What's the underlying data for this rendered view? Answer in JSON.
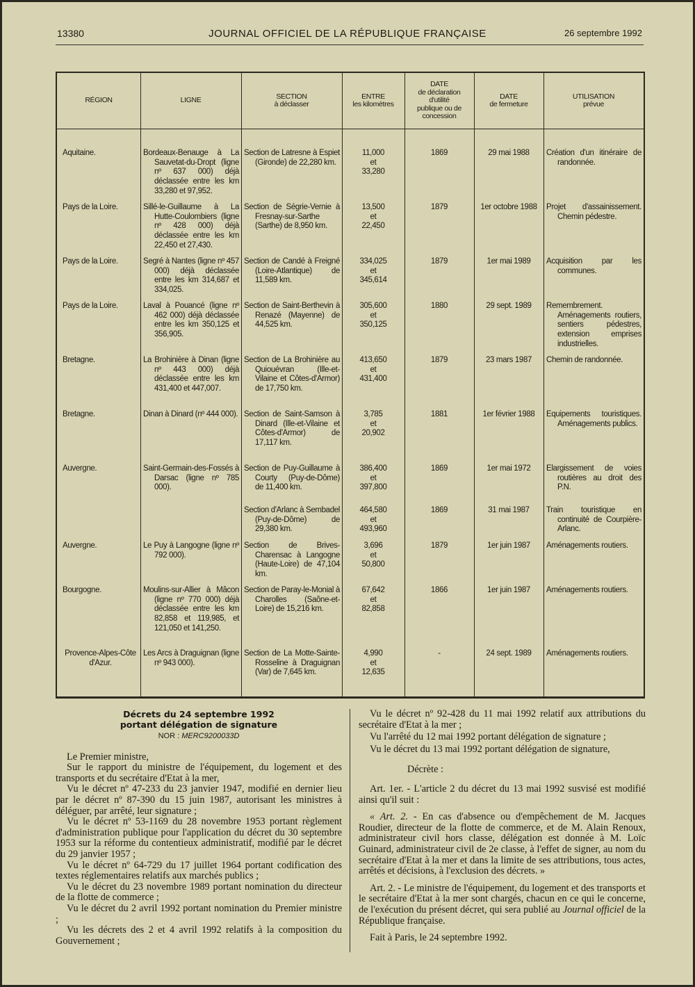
{
  "header": {
    "page_number": "13380",
    "journal_title": "JOURNAL OFFICIEL DE LA RÉPUBLIQUE FRANÇAISE",
    "date": "26 septembre 1992"
  },
  "table": {
    "columns": [
      "RÉGION",
      "LIGNE",
      "SECTION\nà déclasser",
      "ENTRE\nles kilomètres",
      "DATE\nde déclaration\nd'utilité\npublique ou de\nconcession",
      "DATE\nde fermeture",
      "UTILISATION\nprévue"
    ],
    "rows": [
      {
        "region": "Aquitaine.",
        "ligne": "Bordeaux-Benauge à La Sauvetat-du-Dropt (ligne nº 637 000) déjà déclassée entre les km 33,280 et 97,952.",
        "section": "Section de Latresne à Espiet (Gironde) de 22,280 km.",
        "km": "11,000\net\n33,280",
        "dup": "1869",
        "fermeture": "29 mai 1988",
        "utilisation": "Création d'un itinéraire de randonnée."
      },
      {
        "region": "Pays de la Loire.",
        "ligne": "Sillé-le-Guillaume à La Hutte-Coulombiers (ligne nº 428 000) déjà déclassée entre les km 22,450 et 27,430.",
        "section": "Section de Ségrie-Vernie à Fresnay-sur-Sarthe (Sarthe) de 8,950 km.",
        "km": "13,500\net\n22,450",
        "dup": "1879",
        "fermeture": "1er octobre 1988",
        "utilisation": "Projet d'assainissement. Chemin pédestre."
      },
      {
        "region": "Pays de la Loire.",
        "ligne": "Segré à Nantes (ligne nº 457 000) déjà déclassée entre les km 314,687 et 334,025.",
        "section": "Section de Candé à Freigné (Loire-Atlantique) de 11,589 km.",
        "km": "334,025\net\n345,614",
        "dup": "1879",
        "fermeture": "1er mai 1989",
        "utilisation": "Acquisition par les communes."
      },
      {
        "region": "Pays de la Loire.",
        "ligne": "Laval à Pouancé (ligne nº 462 000) déjà déclassée entre les km 350,125 et 356,905.",
        "section": "Section de Saint-Berthevin à Renazé (Mayenne) de 44,525 km.",
        "km": "305,600\net\n350,125",
        "dup": "1880",
        "fermeture": "29 sept. 1989",
        "utilisation": "Remembrement. Aménagements routiers, sentiers pédestres, extension emprises industrielles."
      },
      {
        "region": "Bretagne.",
        "ligne": "La Brohinière à Dinan (ligne nº 443 000) déjà déclassée entre les km 431,400 et 447,007.",
        "section": "Section de La Brohinière au Quiouévran (Ille-et-Vilaine et Côtes-d'Armor) de 17,750 km.",
        "km": "413,650\net\n431,400",
        "dup": "1879",
        "fermeture": "23 mars 1987",
        "utilisation": "Chemin de randonnée."
      },
      {
        "region": "Bretagne.",
        "ligne": "Dinan à Dinard (nº 444 000).",
        "section": "Section de Saint-Samson à Dinard (Ille-et-Vilaine et Côtes-d'Armor) de 17,117 km.",
        "km": "3,785\net\n20,902",
        "dup": "1881",
        "fermeture": "1er février 1988",
        "utilisation": "Equipements touristiques. Aménagements publics."
      },
      {
        "region": "Auvergne.",
        "ligne": "Saint-Germain-des-Fossés à Darsac (ligne nº 785 000).",
        "section": "Section de Puy-Guillaume à Courty (Puy-de-Dôme) de 11,400 km.",
        "km": "386,400\net\n397,800",
        "dup": "1869",
        "fermeture": "1er mai 1972",
        "utilisation": "Elargissement de voies routières au droit des P.N."
      },
      {
        "region": "",
        "ligne": "",
        "section": "Section d'Arlanc à Sembadel (Puy-de-Dôme) de 29,380 km.",
        "km": "464,580\net\n493,960",
        "dup": "1869",
        "fermeture": "31 mai 1987",
        "utilisation": "Train touristique en continuité de Courpière-Arlanc."
      },
      {
        "region": "Auvergne.",
        "ligne": "Le Puy à Langogne (ligne nº 792 000).",
        "section": "Section de Brives-Charensac à Langogne (Haute-Loire) de 47,104 km.",
        "km": "3,696\net\n50,800",
        "dup": "1879",
        "fermeture": "1er juin 1987",
        "utilisation": "Aménagements routiers."
      },
      {
        "region": "Bourgogne.",
        "ligne": "Moulins-sur-Allier à Mâcon (ligne nº 770 000) déjà déclassée entre les km 82,858 et 119,985, et 121,050 et 141,250.",
        "section": "Section de Paray-le-Monial à Charolles (Saône-et-Loire) de 15,216 km.",
        "km": "67,642\net\n82,858",
        "dup": "1866",
        "fermeture": "1er juin 1987",
        "utilisation": "Aménagements routiers."
      },
      {
        "region": "Provence-Alpes-Côte d'Azur.",
        "ligne": "Les Arcs à Draguignan (ligne nº 943 000).",
        "section": "Section de La Motte-Sainte-Rosseline à Draguignan (Var) de 7,645 km.",
        "km": "4,990\net\n12,635",
        "dup": "-",
        "fermeture": "24 sept. 1989",
        "utilisation": "Aménagements routiers."
      }
    ]
  },
  "decree": {
    "title_line1": "Décrets du 24 septembre 1992",
    "title_line2": "portant délégation de signature",
    "nor_label": "NOR :",
    "nor_value": "MERC9200033D",
    "left_paragraphs": [
      "Le Premier ministre,",
      "Sur le rapport du ministre de l'équipement, du logement et des transports et du secrétaire d'Etat à la mer,",
      "Vu le décret nº 47-233 du 23 janvier 1947, modifié en dernier lieu par le décret nº 87-390 du 15 juin 1987, autorisant les ministres à déléguer, par arrêté, leur signature ;",
      "Vu le décret nº 53-1169 du 28 novembre 1953 portant règlement d'administration publique pour l'application du décret du 30 septembre 1953 sur la réforme du contentieux administratif, modifié par le décret du 29 janvier 1957 ;",
      "Vu le décret nº 64-729 du 17 juillet 1964 portant codification des textes réglementaires relatifs aux marchés publics ;",
      "Vu le décret du 23 novembre 1989 portant nomination du directeur de la flotte de commerce ;",
      "Vu le décret du 2 avril 1992 portant nomination du Premier ministre ;",
      "Vu les décrets des 2 et 4 avril 1992 relatifs à la composition du Gouvernement ;"
    ],
    "right_visas": [
      "Vu le décret nº 92-428 du 11 mai 1992 relatif aux attributions du secrétaire d'Etat à la mer ;",
      "Vu l'arrêté du 12 mai 1992 portant délégation de signature ;",
      "Vu le décret du 13 mai 1992 portant délégation de signature,"
    ],
    "decrete": "Décrète :",
    "art1": "Art. 1er. - L'article 2 du décret du 13 mai 1992 susvisé est modifié ainsi qu'il suit :",
    "art1_quote_prefix": "« Art. 2. -",
    "art1_quote": " En cas d'absence ou d'empêchement de M. Jacques Roudier, directeur de la flotte de commerce, et de M. Alain Renoux, administrateur civil hors classe, délégation est donnée à M. Loïc Guinard, administrateur civil de 2e classe, à l'effet de signer, au nom du secrétaire d'Etat à la mer et dans la limite de ses attributions, tous actes, arrêtés et décisions, à l'exclusion des décrets. »",
    "art2_before": "Art. 2. - Le ministre de l'équipement, du logement et des transports et le secrétaire d'Etat à la mer sont chargés, chacun en ce qui le concerne, de l'exécution du présent décret, qui sera publié au ",
    "art2_italic": "Journal officiel",
    "art2_after": " de la République française.",
    "signature": "Fait à Paris, le 24 septembre 1992."
  }
}
